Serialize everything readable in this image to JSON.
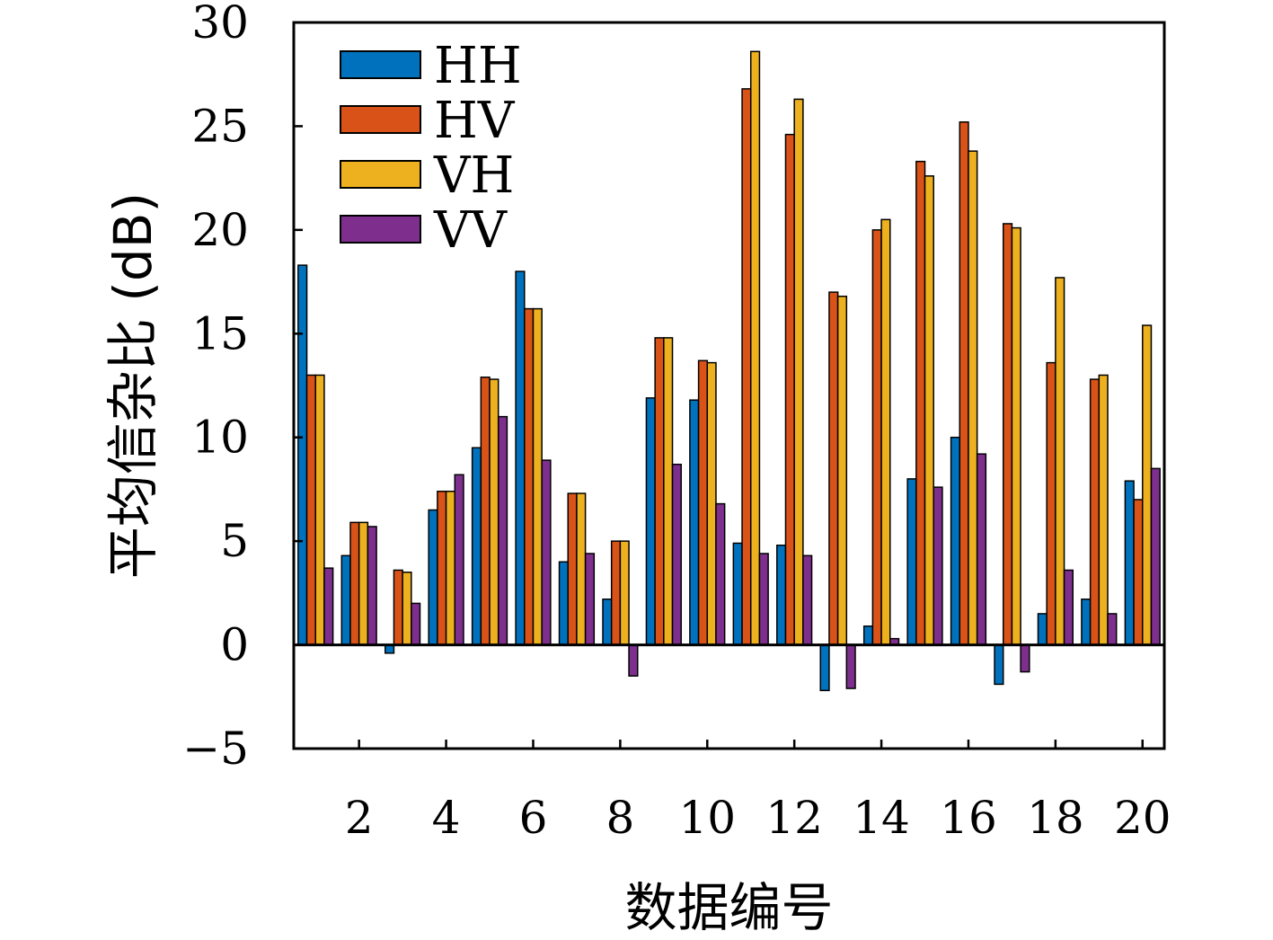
{
  "chart_data": {
    "type": "bar",
    "xlabel": "数据编号",
    "ylabel": "平均信杂比 (dB)",
    "ylim": [
      -5,
      30
    ],
    "yticks": [
      -5,
      0,
      5,
      10,
      15,
      20,
      25,
      30
    ],
    "ytick_labels": [
      "−5",
      "0",
      "5",
      "10",
      "15",
      "20",
      "25",
      "30"
    ],
    "categories": [
      1,
      2,
      3,
      4,
      5,
      6,
      7,
      8,
      9,
      10,
      11,
      12,
      13,
      14,
      15,
      16,
      17,
      18,
      19,
      20
    ],
    "xticks": [
      2,
      4,
      6,
      8,
      10,
      12,
      14,
      16,
      18,
      20
    ],
    "xtick_labels": [
      "2",
      "4",
      "6",
      "8",
      "10",
      "12",
      "14",
      "16",
      "18",
      "20"
    ],
    "legend": "top-left",
    "grid": false,
    "series": [
      {
        "name": "HH",
        "color": "#0072BD",
        "values": [
          18.3,
          4.3,
          -0.4,
          6.5,
          9.5,
          18.0,
          4.0,
          2.2,
          11.9,
          11.8,
          4.9,
          4.8,
          -2.2,
          0.9,
          8.0,
          10.0,
          -1.9,
          1.5,
          2.2,
          7.9
        ]
      },
      {
        "name": "HV",
        "color": "#D95319",
        "values": [
          13.0,
          5.9,
          3.6,
          7.4,
          12.9,
          16.2,
          7.3,
          5.0,
          14.8,
          13.7,
          26.8,
          24.6,
          17.0,
          20.0,
          23.3,
          25.2,
          20.3,
          13.6,
          12.8,
          7.0
        ]
      },
      {
        "name": "VH",
        "color": "#EDB120",
        "values": [
          13.0,
          5.9,
          3.5,
          7.4,
          12.8,
          16.2,
          7.3,
          5.0,
          14.8,
          13.6,
          28.6,
          26.3,
          16.8,
          20.5,
          22.6,
          23.8,
          20.1,
          17.7,
          13.0,
          15.4
        ]
      },
      {
        "name": "VV",
        "color": "#7E2F8E",
        "values": [
          3.7,
          5.7,
          2.0,
          8.2,
          11.0,
          8.9,
          4.4,
          -1.5,
          8.7,
          6.8,
          4.4,
          4.3,
          -2.1,
          0.3,
          7.6,
          9.2,
          -1.3,
          3.6,
          1.5,
          8.5
        ]
      }
    ]
  }
}
